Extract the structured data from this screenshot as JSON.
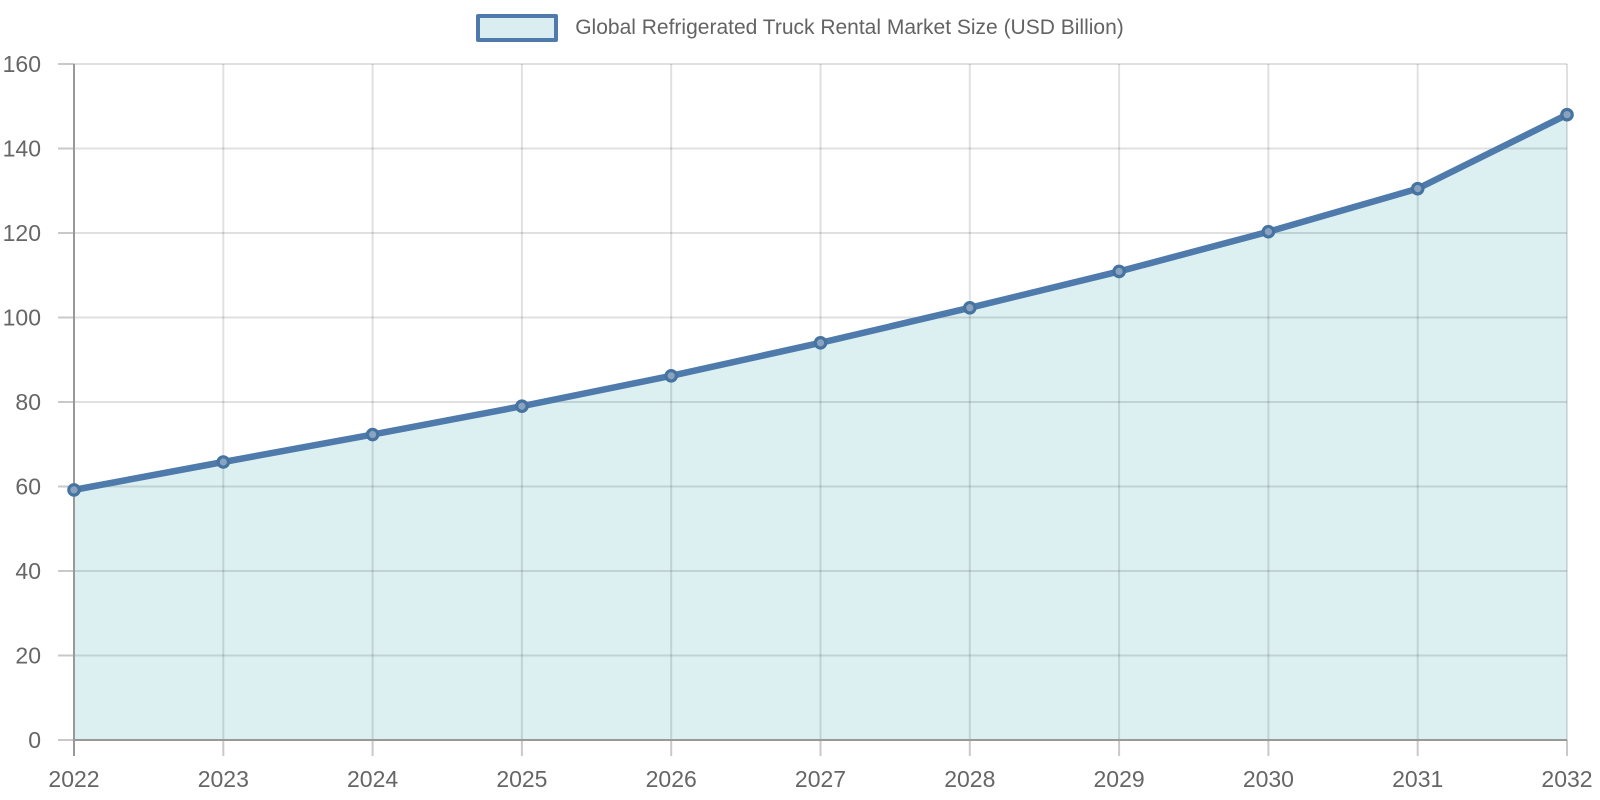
{
  "legend": {
    "label": "Global Refrigerated Truck Rental Market Size (USD Billion)"
  },
  "colors": {
    "line": "#4e7bab",
    "area_fill": "#d9eff1",
    "area_opacity": 0.92,
    "marker_fill": "#8fa6c1",
    "marker_stroke": "#46739f",
    "gridline": "rgba(0,0,0,0.12)",
    "tick": "#c9c9c9",
    "axis": "#999999",
    "axis_label_text": "#666666",
    "legend_swatch_fill": "#daeef2",
    "legend_swatch_border": "#4e7bab",
    "background": "#ffffff"
  },
  "chart_data": {
    "type": "area",
    "title": "Global Refrigerated Truck Rental Market Size (USD Billion)",
    "xlabel": "",
    "ylabel": "",
    "x": [
      "2022",
      "2023",
      "2024",
      "2025",
      "2026",
      "2027",
      "2028",
      "2029",
      "2030",
      "2031",
      "2032"
    ],
    "values": [
      59.2,
      65.8,
      72.3,
      79.0,
      86.2,
      94.0,
      102.3,
      110.9,
      120.3,
      130.5,
      148.0
    ],
    "series_name": "Global Refrigerated Truck Rental Market Size (USD Billion)",
    "ylim": [
      0,
      160
    ],
    "y_ticks": [
      0,
      20,
      40,
      60,
      80,
      100,
      120,
      140,
      160
    ],
    "grid": true,
    "legend_position": "top-center",
    "marker": "circle",
    "line_smooth": false
  }
}
